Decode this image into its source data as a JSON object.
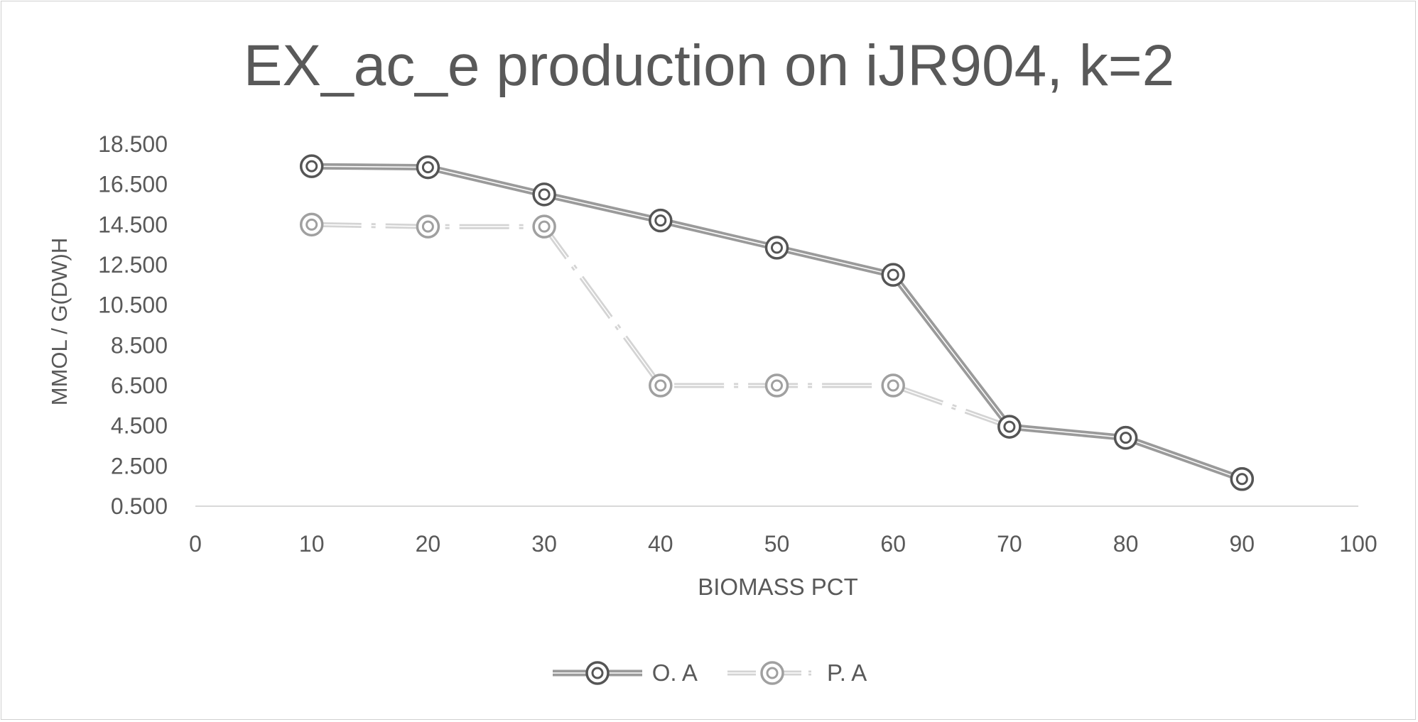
{
  "chart_data": {
    "type": "line",
    "title": "EX_ac_e production on iJR904, k=2",
    "xlabel": "BIOMASS PCT",
    "ylabel": "MMOL / G(DW)H",
    "x": [
      10,
      20,
      30,
      40,
      50,
      60,
      70,
      80,
      90
    ],
    "xlim": [
      0,
      100
    ],
    "xticks": [
      "0",
      "10",
      "20",
      "30",
      "40",
      "50",
      "60",
      "70",
      "80",
      "90",
      "100"
    ],
    "ylim": [
      0.5,
      18.5
    ],
    "yticks": [
      "0.500",
      "2.500",
      "4.500",
      "6.500",
      "8.500",
      "10.500",
      "12.500",
      "14.500",
      "16.500",
      "18.500"
    ],
    "grid": false,
    "legend_position": "bottom",
    "series": [
      {
        "name": "O. A",
        "values": [
          17.4,
          17.35,
          16.0,
          14.7,
          13.35,
          12.0,
          4.45,
          3.9,
          1.85
        ],
        "color": "#9a9a9a",
        "marker_color": "#555555",
        "line_style": "solid"
      },
      {
        "name": "P. A",
        "values": [
          14.5,
          14.4,
          14.4,
          6.5,
          6.5,
          6.5,
          4.45,
          3.9,
          1.85
        ],
        "color": "#d4d4d4",
        "marker_color": "#a0a0a0",
        "line_style": "dash-dot"
      }
    ]
  }
}
